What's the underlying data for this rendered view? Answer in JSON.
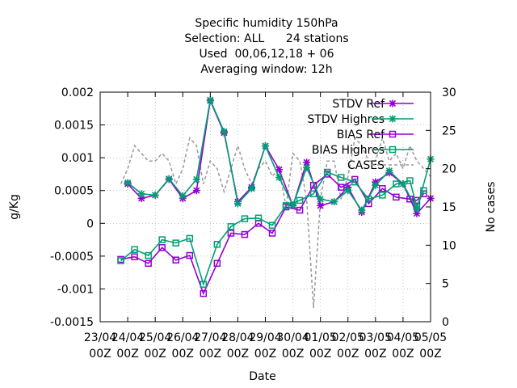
{
  "chart_data": {
    "type": "line",
    "title": [
      "Specific humidity 150hPa",
      "Selection: ALL      24 stations",
      "Used  00,06,12,18 + 06",
      "Averaging window: 12h"
    ],
    "xlabel": "Date",
    "ylabel": "g/Kg",
    "y2label": "No cases",
    "ylim": [
      -0.0015,
      0.002
    ],
    "y2lim": [
      0,
      30
    ],
    "y_ticks": [
      "-0.0015",
      "-0.001",
      "-0.0005",
      "0",
      "0.0005",
      "0.001",
      "0.0015",
      "0.002"
    ],
    "y2_ticks": [
      "0",
      "5",
      "10",
      "15",
      "20",
      "25",
      "30"
    ],
    "x_ticks": [
      {
        "date": "23/04",
        "hour": "00Z"
      },
      {
        "date": "24/04",
        "hour": "00Z"
      },
      {
        "date": "25/04",
        "hour": "00Z"
      },
      {
        "date": "26/04",
        "hour": "00Z"
      },
      {
        "date": "27/04",
        "hour": "00Z"
      },
      {
        "date": "28/04",
        "hour": "00Z"
      },
      {
        "date": "29/04",
        "hour": "00Z"
      },
      {
        "date": "30/04",
        "hour": "00Z"
      },
      {
        "date": "01/05",
        "hour": "00Z"
      },
      {
        "date": "02/05",
        "hour": "00Z"
      },
      {
        "date": "03/05",
        "hour": "00Z"
      },
      {
        "date": "04/05",
        "hour": "00Z"
      },
      {
        "date": "05/05",
        "hour": "00Z"
      }
    ],
    "x": [
      "23/04 18Z",
      "24/04 00Z",
      "24/04 06Z",
      "24/04 12Z",
      "24/04 18Z",
      "25/04 00Z",
      "25/04 06Z",
      "25/04 12Z",
      "25/04 18Z",
      "26/04 00Z",
      "26/04 06Z",
      "26/04 12Z",
      "26/04 18Z",
      "27/04 00Z",
      "27/04 06Z",
      "27/04 12Z",
      "27/04 18Z",
      "28/04 00Z",
      "28/04 06Z",
      "28/04 12Z",
      "28/04 18Z",
      "29/04 00Z",
      "29/04 06Z",
      "29/04 12Z",
      "29/04 18Z",
      "30/04 00Z",
      "30/04 06Z",
      "30/04 12Z",
      "30/04 18Z",
      "01/05 00Z",
      "01/05 06Z",
      "01/05 12Z",
      "01/05 18Z",
      "02/05 00Z",
      "02/05 06Z",
      "02/05 12Z",
      "02/05 18Z",
      "03/05 00Z",
      "03/05 06Z",
      "03/05 12Z",
      "03/05 18Z",
      "04/05 00Z",
      "04/05 06Z",
      "04/05 12Z",
      "04/05 18Z",
      "05/05 00Z"
    ],
    "series": [
      {
        "name": "STDV Ref",
        "color": "#9400d3",
        "marker": "x",
        "points": [
          [
            "24/04 00Z",
            0.0006
          ],
          [
            "24/04 12Z",
            0.00038
          ],
          [
            "25/04 00Z",
            0.00043
          ],
          [
            "25/04 12Z",
            0.00067
          ],
          [
            "26/04 00Z",
            0.00038
          ],
          [
            "26/04 12Z",
            0.0005
          ],
          [
            "27/04 00Z",
            0.00187
          ],
          [
            "27/04 12Z",
            0.00138
          ],
          [
            "28/04 00Z",
            0.00033
          ],
          [
            "28/04 12Z",
            0.00055
          ],
          [
            "29/04 00Z",
            0.00118
          ],
          [
            "29/04 12Z",
            0.00082
          ],
          [
            "30/04 00Z",
            0.00027
          ],
          [
            "30/04 12Z",
            0.00093
          ],
          [
            "01/05 00Z",
            0.00027
          ],
          [
            "01/05 12Z",
            0.00033
          ],
          [
            "02/05 00Z",
            0.00055
          ],
          [
            "02/05 12Z",
            0.00017
          ],
          [
            "03/05 00Z",
            0.00063
          ],
          [
            "03/05 12Z",
            0.00077
          ],
          [
            "04/05 00Z",
            0.0006
          ],
          [
            "04/05 12Z",
            0.00015
          ],
          [
            "05/05 00Z",
            0.00038
          ]
        ]
      },
      {
        "name": "STDV Highres",
        "color": "#009e73",
        "marker": "x",
        "points": [
          [
            "24/04 00Z",
            0.00062
          ],
          [
            "24/04 12Z",
            0.00045
          ],
          [
            "25/04 00Z",
            0.00043
          ],
          [
            "25/04 12Z",
            0.00068
          ],
          [
            "26/04 00Z",
            0.00042
          ],
          [
            "26/04 12Z",
            0.00067
          ],
          [
            "27/04 00Z",
            0.00188
          ],
          [
            "27/04 12Z",
            0.0014
          ],
          [
            "28/04 00Z",
            0.0003
          ],
          [
            "28/04 12Z",
            0.00053
          ],
          [
            "29/04 00Z",
            0.00118
          ],
          [
            "29/04 12Z",
            0.0007
          ],
          [
            "30/04 00Z",
            0.00028
          ],
          [
            "30/04 12Z",
            0.00085
          ],
          [
            "01/05 00Z",
            0.00037
          ],
          [
            "01/05 12Z",
            0.00033
          ],
          [
            "02/05 00Z",
            0.0005
          ],
          [
            "02/05 12Z",
            0.0002
          ],
          [
            "03/05 00Z",
            0.00058
          ],
          [
            "03/05 12Z",
            0.0008
          ],
          [
            "04/05 00Z",
            0.0006
          ],
          [
            "04/05 12Z",
            0.00022
          ],
          [
            "05/05 00Z",
            0.00098
          ]
        ]
      },
      {
        "name": "BIAS Ref",
        "color": "#9400d3",
        "marker": "square",
        "points": [
          [
            "23/04 18Z",
            -0.00055
          ],
          [
            "24/04 06Z",
            -0.00051
          ],
          [
            "24/04 18Z",
            -0.00061
          ],
          [
            "25/04 06Z",
            -0.00037
          ],
          [
            "25/04 18Z",
            -0.00056
          ],
          [
            "26/04 06Z",
            -0.00049
          ],
          [
            "26/04 18Z",
            -0.00107
          ],
          [
            "27/04 06Z",
            -0.00061
          ],
          [
            "27/04 18Z",
            -0.00015
          ],
          [
            "28/04 06Z",
            -0.00017
          ],
          [
            "28/04 18Z",
            0.0
          ],
          [
            "29/04 06Z",
            -0.00015
          ],
          [
            "29/04 18Z",
            0.00025
          ],
          [
            "30/04 06Z",
            0.0002
          ],
          [
            "30/04 18Z",
            0.00058
          ],
          [
            "01/05 06Z",
            0.00075
          ],
          [
            "01/05 18Z",
            0.00055
          ],
          [
            "02/05 06Z",
            0.00067
          ],
          [
            "02/05 18Z",
            0.0003
          ],
          [
            "03/05 06Z",
            0.00053
          ],
          [
            "03/05 18Z",
            0.0004
          ],
          [
            "04/05 06Z",
            0.00037
          ],
          [
            "04/05 12Z",
            0.00035
          ],
          [
            "04/05 18Z",
            0.00045
          ]
        ]
      },
      {
        "name": "BIAS Highres",
        "color": "#009e73",
        "marker": "square",
        "points": [
          [
            "23/04 18Z",
            -0.00057
          ],
          [
            "24/04 06Z",
            -0.0004
          ],
          [
            "24/04 18Z",
            -0.00049
          ],
          [
            "25/04 06Z",
            -0.00025
          ],
          [
            "25/04 18Z",
            -0.0003
          ],
          [
            "26/04 06Z",
            -0.00023
          ],
          [
            "26/04 18Z",
            -0.00093
          ],
          [
            "27/04 06Z",
            -0.00032
          ],
          [
            "27/04 18Z",
            -5e-05
          ],
          [
            "28/04 06Z",
            7e-05
          ],
          [
            "28/04 18Z",
            8e-05
          ],
          [
            "29/04 06Z",
            -3e-05
          ],
          [
            "29/04 18Z",
            0.00027
          ],
          [
            "30/04 06Z",
            0.00035
          ],
          [
            "30/04 18Z",
            0.00045
          ],
          [
            "01/05 06Z",
            0.00078
          ],
          [
            "01/05 18Z",
            0.0007
          ],
          [
            "02/05 06Z",
            0.00063
          ],
          [
            "02/05 18Z",
            0.00037
          ],
          [
            "03/05 06Z",
            0.00043
          ],
          [
            "03/05 18Z",
            0.0006
          ],
          [
            "04/05 06Z",
            0.00065
          ],
          [
            "04/05 12Z",
            0.00025
          ],
          [
            "04/05 18Z",
            0.0005
          ]
        ]
      },
      {
        "name": "CASES",
        "color": "#999999",
        "dash": true,
        "axis": "y2",
        "points": [
          [
            "23/04 18Z",
            18
          ],
          [
            "24/04 00Z",
            20
          ],
          [
            "24/04 06Z",
            23
          ],
          [
            "24/04 12Z",
            22
          ],
          [
            "24/04 18Z",
            21
          ],
          [
            "25/04 00Z",
            21
          ],
          [
            "25/04 06Z",
            22
          ],
          [
            "25/04 12Z",
            21
          ],
          [
            "25/04 18Z",
            18
          ],
          [
            "26/04 00Z",
            20
          ],
          [
            "26/04 06Z",
            24
          ],
          [
            "26/04 12Z",
            23
          ],
          [
            "26/04 18Z",
            18
          ],
          [
            "27/04 00Z",
            21
          ],
          [
            "27/04 06Z",
            20
          ],
          [
            "27/04 12Z",
            17
          ],
          [
            "27/04 18Z",
            20
          ],
          [
            "28/04 00Z",
            23
          ],
          [
            "28/04 06Z",
            20
          ],
          [
            "28/04 12Z",
            18
          ],
          [
            "28/04 18Z",
            20
          ],
          [
            "29/04 00Z",
            21
          ],
          [
            "29/04 06Z",
            19
          ],
          [
            "29/04 12Z",
            20
          ],
          [
            "29/04 18Z",
            15
          ],
          [
            "30/04 00Z",
            22
          ],
          [
            "30/04 06Z",
            21
          ],
          [
            "30/04 12Z",
            16
          ],
          [
            "30/04 18Z",
            1.8
          ],
          [
            "01/05 00Z",
            16
          ],
          [
            "01/05 06Z",
            21
          ],
          [
            "01/05 12Z",
            21
          ],
          [
            "01/05 18Z",
            16
          ],
          [
            "02/05 00Z",
            19
          ],
          [
            "02/05 06Z",
            24
          ],
          [
            "02/05 12Z",
            23
          ],
          [
            "02/05 18Z",
            21
          ],
          [
            "03/05 00Z",
            21
          ],
          [
            "03/05 06Z",
            24
          ],
          [
            "03/05 12Z",
            21
          ],
          [
            "03/05 18Z",
            22
          ],
          [
            "04/05 00Z",
            20
          ],
          [
            "04/05 06Z",
            23
          ],
          [
            "04/05 12Z",
            21
          ],
          [
            "04/05 18Z",
            20
          ],
          [
            "05/05 00Z",
            19
          ]
        ]
      }
    ],
    "legend_position": "top-right",
    "grid": true
  }
}
